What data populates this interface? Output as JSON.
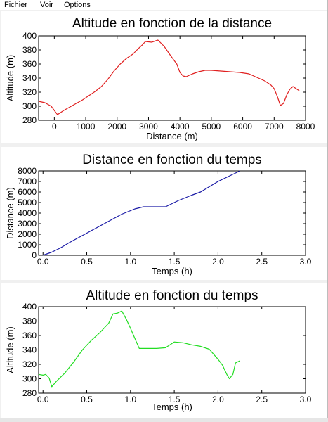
{
  "menu": {
    "items": [
      "Fichier",
      "Voir",
      "Options"
    ]
  },
  "colors": {
    "chart1_line": "#e02020",
    "chart2_line": "#1a1aa6",
    "chart3_line": "#22dd22"
  },
  "chart_data": [
    {
      "type": "line",
      "title": "Altitude en fonction de la distance",
      "xlabel": "Distance (m)",
      "ylabel": "Altitude (m)",
      "xlim": [
        -500,
        8000
      ],
      "ylim": [
        280,
        400
      ],
      "xticks": [
        0,
        1000,
        2000,
        3000,
        4000,
        5000,
        6000,
        7000,
        8000
      ],
      "yticks": [
        280,
        300,
        320,
        340,
        360,
        380,
        400
      ],
      "grid": false,
      "series": [
        {
          "x": [
            -500,
            -300,
            -100,
            100,
            300,
            500,
            700,
            900,
            1100,
            1300,
            1500,
            1700,
            1900,
            2100,
            2300,
            2500,
            2700,
            2800,
            2900,
            3100,
            3300,
            3500,
            3700,
            3900,
            4000,
            4100,
            4200,
            4400,
            4600,
            4800,
            5000,
            5300,
            5600,
            5900,
            6200,
            6500,
            6700,
            6900,
            7000,
            7100,
            7200,
            7300,
            7400,
            7500,
            7600,
            7800
          ],
          "y": [
            307,
            305,
            300,
            288,
            294,
            299,
            304,
            309,
            315,
            321,
            328,
            338,
            350,
            360,
            368,
            374,
            383,
            387,
            392,
            391,
            394,
            385,
            372,
            360,
            348,
            343,
            342,
            346,
            349,
            351,
            351,
            350,
            349,
            348,
            346,
            340,
            336,
            330,
            325,
            314,
            301,
            304,
            316,
            324,
            328,
            322
          ]
        }
      ]
    },
    {
      "type": "line",
      "title": "Distance en fonction du temps",
      "xlabel": "Temps (h)",
      "ylabel": "Distance (m)",
      "xlim": [
        -0.05,
        3.0
      ],
      "ylim": [
        0,
        8000
      ],
      "xticks": [
        0.0,
        0.5,
        1.0,
        1.5,
        2.0,
        2.5,
        3.0
      ],
      "yticks": [
        0,
        1000,
        2000,
        3000,
        4000,
        5000,
        6000,
        7000,
        8000
      ],
      "grid": false,
      "series": [
        {
          "x": [
            0.0,
            0.1,
            0.2,
            0.3,
            0.5,
            0.7,
            0.9,
            1.05,
            1.15,
            1.25,
            1.4,
            1.55,
            1.7,
            1.8,
            1.9,
            2.0,
            2.1,
            2.25
          ],
          "y": [
            0,
            300,
            700,
            1200,
            2100,
            3000,
            3900,
            4400,
            4600,
            4600,
            4600,
            5200,
            5700,
            6000,
            6500,
            7000,
            7400,
            8000
          ]
        }
      ]
    },
    {
      "type": "line",
      "title": "Altitude en fonction du temps",
      "xlabel": "Temps (h)",
      "ylabel": "Altitude (m)",
      "xlim": [
        -0.05,
        3.0
      ],
      "ylim": [
        280,
        400
      ],
      "xticks": [
        0.0,
        0.5,
        1.0,
        1.5,
        2.0,
        2.5,
        3.0
      ],
      "yticks": [
        280,
        300,
        320,
        340,
        360,
        380,
        400
      ],
      "grid": false,
      "series": [
        {
          "x": [
            -0.05,
            0.0,
            0.03,
            0.07,
            0.1,
            0.15,
            0.25,
            0.35,
            0.45,
            0.55,
            0.65,
            0.75,
            0.8,
            0.85,
            0.9,
            0.95,
            1.0,
            1.05,
            1.1,
            1.2,
            1.3,
            1.4,
            1.5,
            1.6,
            1.7,
            1.8,
            1.9,
            1.95,
            2.0,
            2.05,
            2.1,
            2.13,
            2.17,
            2.2,
            2.25
          ],
          "y": [
            306,
            305,
            306,
            301,
            289,
            296,
            308,
            323,
            340,
            353,
            364,
            377,
            390,
            391,
            394,
            383,
            370,
            356,
            342,
            342,
            342,
            343,
            351,
            350,
            347,
            345,
            341,
            334,
            327,
            319,
            306,
            300,
            306,
            322,
            325
          ]
        }
      ]
    }
  ]
}
